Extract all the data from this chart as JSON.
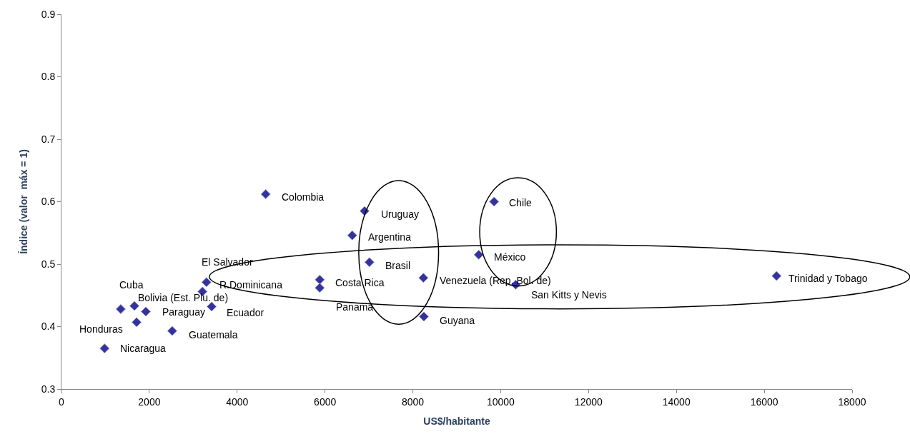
{
  "chart_data": {
    "type": "scatter",
    "xlabel": "US$/habitante",
    "ylabel": "Índice (valor  máx = 1)",
    "x": [
      980,
      1350,
      1660,
      1920,
      1710,
      2520,
      3300,
      3210,
      3420,
      4650,
      5880,
      5880,
      6900,
      6620,
      7010,
      8240,
      8250,
      9850,
      9500,
      10340,
      16280
    ],
    "series": [
      {
        "color": "#333399",
        "values": [
          0.365,
          0.428,
          0.433,
          0.424,
          0.407,
          0.393,
          0.471,
          0.456,
          0.432,
          0.612,
          0.475,
          0.462,
          0.585,
          0.546,
          0.503,
          0.478,
          0.416,
          0.6,
          0.515,
          0.467,
          0.481
        ]
      }
    ],
    "annotations": [
      {
        "text": "Nicaragua",
        "x": 980,
        "y": 0.365
      },
      {
        "text": "Cuba",
        "x": 1350,
        "y": 0.428
      },
      {
        "text": "Bolivia (Est. Plu. de)",
        "x": 1660,
        "y": 0.433
      },
      {
        "text": "Paraguay",
        "x": 1920,
        "y": 0.424
      },
      {
        "text": "Honduras",
        "x": 1710,
        "y": 0.407
      },
      {
        "text": "Guatemala",
        "x": 2520,
        "y": 0.393
      },
      {
        "text": "El Salvador",
        "x": 3300,
        "y": 0.471
      },
      {
        "text": "R.Dominicana",
        "x": 3210,
        "y": 0.456
      },
      {
        "text": "Ecuador",
        "x": 3420,
        "y": 0.432
      },
      {
        "text": "Colombia",
        "x": 4650,
        "y": 0.612
      },
      {
        "text": "Costa Rica",
        "x": 5880,
        "y": 0.475
      },
      {
        "text": "Panamá",
        "x": 5880,
        "y": 0.462
      },
      {
        "text": "Uruguay",
        "x": 6900,
        "y": 0.585
      },
      {
        "text": "Argentina",
        "x": 6620,
        "y": 0.546
      },
      {
        "text": "Brasil",
        "x": 7010,
        "y": 0.503
      },
      {
        "text": "Venezuela (Rep. Bol. de)",
        "x": 8240,
        "y": 0.478
      },
      {
        "text": "Guyana",
        "x": 8250,
        "y": 0.416
      },
      {
        "text": "Chile",
        "x": 9850,
        "y": 0.6
      },
      {
        "text": "México",
        "x": 9500,
        "y": 0.515
      },
      {
        "text": "San Kitts y Nevis",
        "x": 10340,
        "y": 0.467
      },
      {
        "text": "Trinidad y Tobago",
        "x": 16280,
        "y": 0.481
      }
    ],
    "xlim": [
      0,
      18000
    ],
    "xticks": [
      0,
      2000,
      4000,
      6000,
      8000,
      10000,
      12000,
      14000,
      16000,
      18000
    ],
    "ylim": [
      0.3,
      0.9
    ],
    "yticks": [
      0.3,
      0.4,
      0.5,
      0.6,
      0.7,
      0.8,
      0.9
    ],
    "marker": "diamond"
  }
}
